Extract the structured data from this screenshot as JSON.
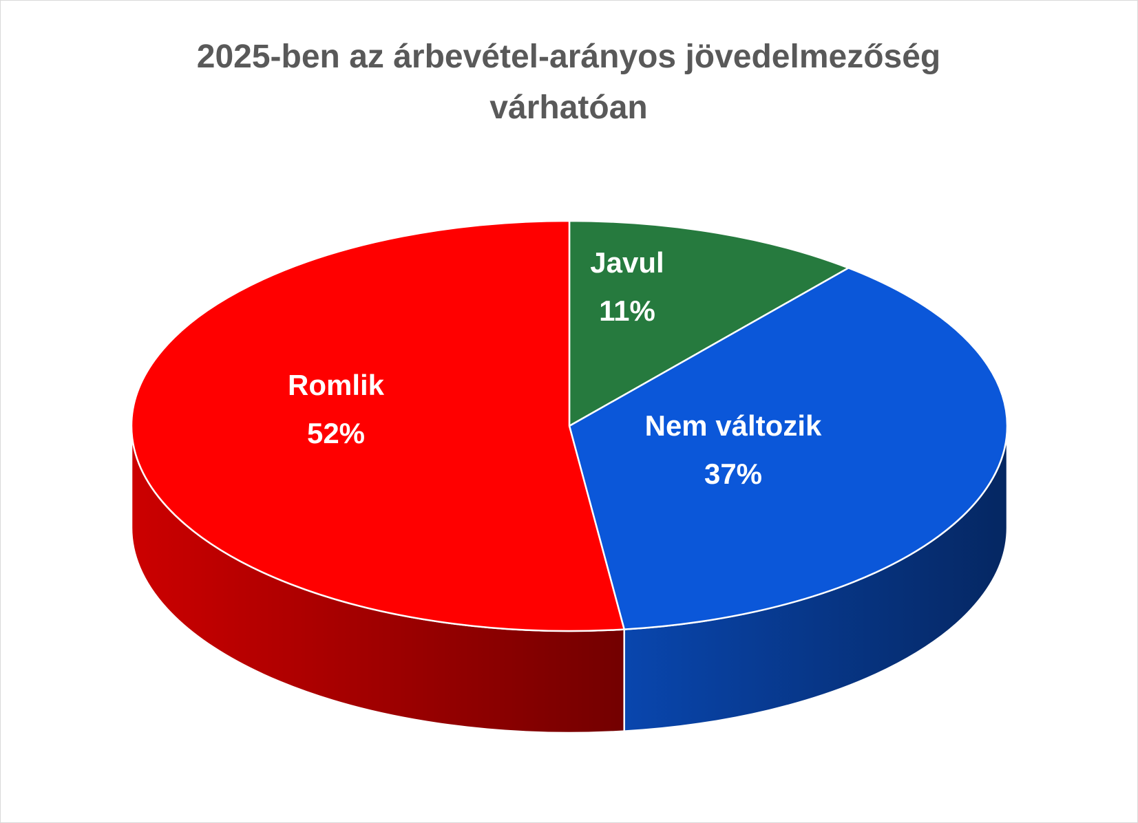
{
  "chart_data": {
    "type": "pie",
    "title": "2025-ben az árbevétel-arányos jövedelmezőség várhatóan",
    "categories": [
      "Javul",
      "Nem változik",
      "Romlik"
    ],
    "values": [
      11,
      37,
      52
    ],
    "value_labels": [
      "11%",
      "37%",
      "52%"
    ],
    "colors": [
      "#267a3e",
      "#0b57d9",
      "#ff0000"
    ]
  }
}
